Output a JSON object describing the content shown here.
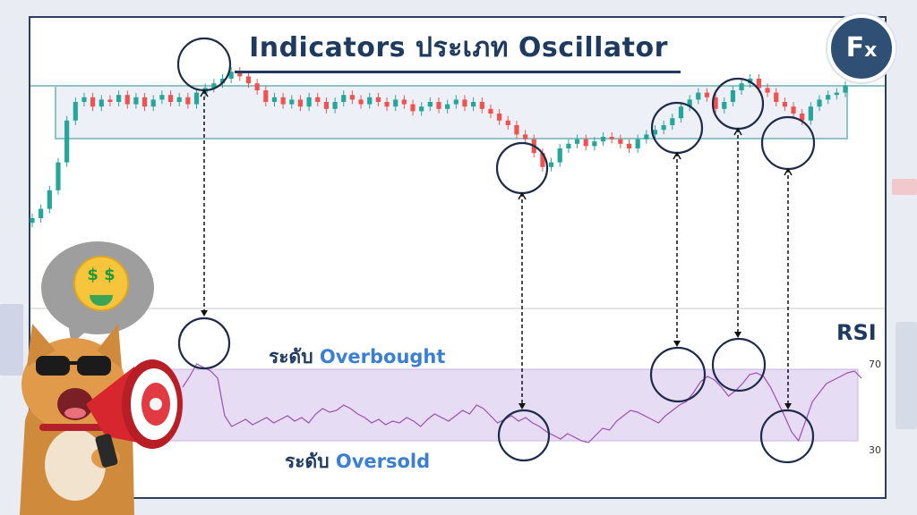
{
  "title": "Indicators ประเภท Oscillator",
  "logo": {
    "text": "F",
    "sub": "x"
  },
  "labels": {
    "overbought_prefix": "ระดับ",
    "overbought_word": "Overbought",
    "oversold_prefix": "ระดับ",
    "oversold_word": "Oversold"
  },
  "rsi": {
    "title": "RSI",
    "upper_level": "70",
    "lower_level": "30"
  },
  "colors": {
    "brand_navy": "#1e3a5f",
    "accent_blue": "#3b7fd4",
    "candle_up": "#26a69a",
    "candle_down": "#ef5350",
    "rsi_line": "#9c4fb8",
    "rsi_band": "#e6dcf3",
    "range_box": "#8fc3c7"
  },
  "icons": [
    "money-face-emoji-icon",
    "megaphone-icon",
    "cat-mascot-icon",
    "fx-logo-icon"
  ],
  "chart_data": [
    {
      "type": "line",
      "series": [
        {
          "values": [
            10,
            14,
            22,
            34,
            52,
            60,
            62,
            58,
            61,
            60,
            63,
            59,
            62,
            58,
            61,
            63,
            60,
            62,
            59,
            64,
            66,
            68,
            70,
            73,
            71,
            68,
            65,
            60,
            62,
            59,
            61,
            58,
            62,
            60,
            57,
            60,
            63,
            61,
            59,
            62,
            60,
            58,
            61,
            59,
            56,
            58,
            60,
            57,
            59,
            61,
            58,
            60,
            57,
            55,
            52,
            50,
            46,
            44,
            38,
            32,
            34,
            40,
            42,
            44,
            41,
            43,
            45,
            44,
            42,
            40,
            44,
            46,
            48,
            50,
            53,
            58,
            61,
            64,
            62,
            57,
            60,
            65,
            68,
            70,
            66,
            64,
            60,
            58,
            55,
            52,
            58,
            61,
            63,
            64,
            67
          ]
        }
      ]
    },
    {
      "type": "line",
      "ylim": [
        30,
        70
      ],
      "series": [
        {
          "values": [
            60,
            66,
            73,
            71,
            69,
            65,
            44,
            38,
            40,
            42,
            39,
            41,
            43,
            40,
            42,
            44,
            41,
            43,
            40,
            45,
            48,
            46,
            47,
            50,
            48,
            45,
            43,
            40,
            42,
            39,
            41,
            40,
            43,
            41,
            38,
            42,
            45,
            43,
            41,
            44,
            47,
            45,
            50,
            48,
            44,
            40,
            42,
            44,
            41,
            43,
            40,
            38,
            35,
            33,
            31,
            34,
            32,
            30,
            29,
            33,
            37,
            36,
            41,
            44,
            47,
            46,
            44,
            42,
            40,
            44,
            47,
            50,
            52,
            57,
            63,
            66,
            64,
            60,
            55,
            58,
            62,
            67,
            68,
            66,
            60,
            52,
            44,
            35,
            30,
            41,
            52,
            57,
            62,
            64,
            66,
            68,
            69,
            65
          ]
        }
      ]
    }
  ]
}
